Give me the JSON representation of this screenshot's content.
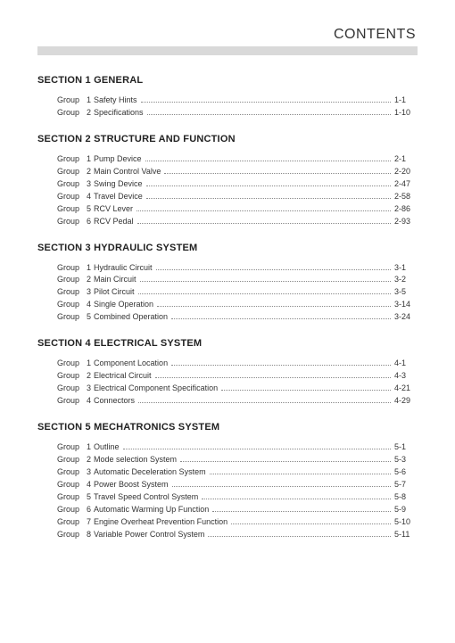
{
  "page_title": "CONTENTS",
  "sections": [
    {
      "title": "SECTION 1  GENERAL",
      "entries": [
        {
          "group": "Group",
          "num": "1",
          "name": "Safety Hints",
          "page": "1-1"
        },
        {
          "group": "Group",
          "num": "2",
          "name": "Specifications",
          "page": "1-10"
        }
      ]
    },
    {
      "title": "SECTION 2  STRUCTURE AND FUNCTION",
      "entries": [
        {
          "group": "Group",
          "num": "1",
          "name": "Pump Device",
          "page": "2-1"
        },
        {
          "group": "Group",
          "num": "2",
          "name": "Main Control Valve",
          "page": "2-20"
        },
        {
          "group": "Group",
          "num": "3",
          "name": "Swing Device",
          "page": "2-47"
        },
        {
          "group": "Group",
          "num": "4",
          "name": "Travel Device",
          "page": "2-58"
        },
        {
          "group": "Group",
          "num": "5",
          "name": "RCV Lever",
          "page": "2-86"
        },
        {
          "group": "Group",
          "num": "6",
          "name": "RCV Pedal",
          "page": "2-93"
        }
      ]
    },
    {
      "title": "SECTION 3  HYDRAULIC SYSTEM",
      "entries": [
        {
          "group": "Group",
          "num": "1",
          "name": "Hydraulic Circuit",
          "page": "3-1"
        },
        {
          "group": "Group",
          "num": "2",
          "name": "Main Circuit",
          "page": "3-2"
        },
        {
          "group": "Group",
          "num": "3",
          "name": "Pilot Circuit",
          "page": "3-5"
        },
        {
          "group": "Group",
          "num": "4",
          "name": "Single Operation",
          "page": "3-14"
        },
        {
          "group": "Group",
          "num": "5",
          "name": "Combined Operation",
          "page": "3-24"
        }
      ]
    },
    {
      "title": "SECTION 4  ELECTRICAL SYSTEM",
      "entries": [
        {
          "group": "Group",
          "num": "1",
          "name": "Component Location",
          "page": "4-1"
        },
        {
          "group": "Group",
          "num": "2",
          "name": "Electrical Circuit",
          "page": "4-3"
        },
        {
          "group": "Group",
          "num": "3",
          "name": "Electrical Component Specification",
          "page": "4-21"
        },
        {
          "group": "Group",
          "num": "4",
          "name": "Connectors",
          "page": "4-29"
        }
      ]
    },
    {
      "title": "SECTION 5  MECHATRONICS SYSTEM",
      "entries": [
        {
          "group": "Group",
          "num": "1",
          "name": "Outline",
          "page": "5-1"
        },
        {
          "group": "Group",
          "num": "2",
          "name": "Mode selection System",
          "page": "5-3"
        },
        {
          "group": "Group",
          "num": "3",
          "name": "Automatic Deceleration System",
          "page": "5-6"
        },
        {
          "group": "Group",
          "num": "4",
          "name": "Power Boost System",
          "page": "5-7"
        },
        {
          "group": "Group",
          "num": "5",
          "name": "Travel Speed Control System",
          "page": "5-8"
        },
        {
          "group": "Group",
          "num": "6",
          "name": "Automatic Warming Up Function",
          "page": "5-9"
        },
        {
          "group": "Group",
          "num": "7",
          "name": "Engine Overheat Prevention Function",
          "page": "5-10"
        },
        {
          "group": "Group",
          "num": "8",
          "name": "Variable Power Control System",
          "page": "5-11"
        }
      ]
    }
  ]
}
